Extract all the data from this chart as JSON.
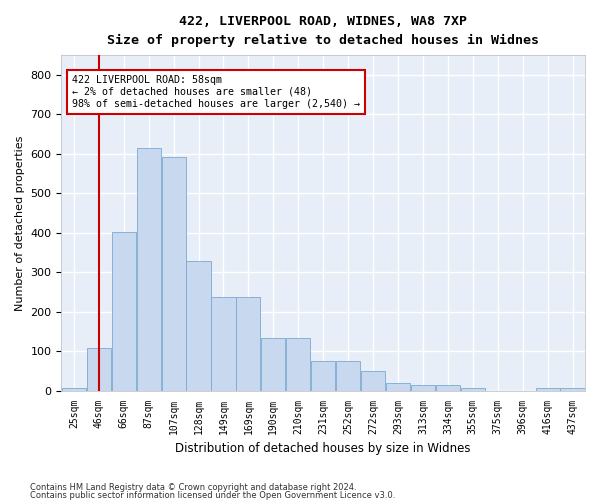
{
  "title1": "422, LIVERPOOL ROAD, WIDNES, WA8 7XP",
  "title2": "Size of property relative to detached houses in Widnes",
  "xlabel": "Distribution of detached houses by size in Widnes",
  "ylabel": "Number of detached properties",
  "categories": [
    "25sqm",
    "46sqm",
    "66sqm",
    "87sqm",
    "107sqm",
    "128sqm",
    "149sqm",
    "169sqm",
    "190sqm",
    "210sqm",
    "231sqm",
    "252sqm",
    "272sqm",
    "293sqm",
    "313sqm",
    "334sqm",
    "355sqm",
    "375sqm",
    "396sqm",
    "416sqm",
    "437sqm"
  ],
  "values": [
    8,
    108,
    402,
    614,
    591,
    330,
    238,
    238,
    133,
    133,
    76,
    76,
    49,
    20,
    15,
    15,
    8,
    0,
    0,
    8,
    8
  ],
  "bar_color": "#c8d8ee",
  "bar_edge_color": "#7aaad0",
  "background_color": "#e8eef8",
  "grid_color": "#ffffff",
  "vline_color": "#cc0000",
  "vline_pos": 1.5,
  "annotation_text": "422 LIVERPOOL ROAD: 58sqm\n← 2% of detached houses are smaller (48)\n98% of semi-detached houses are larger (2,540) →",
  "annotation_box_color": "#cc0000",
  "ylim": [
    0,
    850
  ],
  "yticks": [
    0,
    100,
    200,
    300,
    400,
    500,
    600,
    700,
    800
  ],
  "footer1": "Contains HM Land Registry data © Crown copyright and database right 2024.",
  "footer2": "Contains public sector information licensed under the Open Government Licence v3.0."
}
